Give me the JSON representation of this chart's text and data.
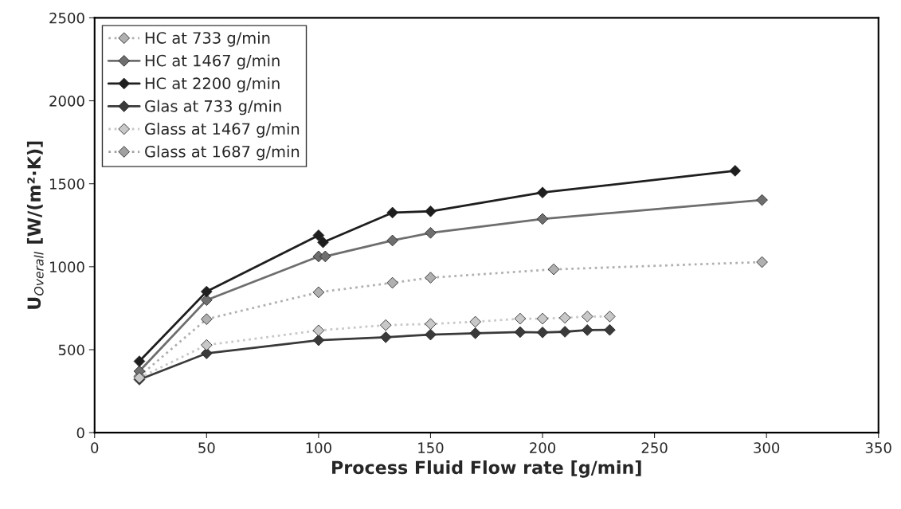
{
  "chart_data": {
    "type": "line",
    "xlabel": "Process Fluid Flow rate [g/min]",
    "ylabel": "U$_{Overall}$ [W/(m²·K)]",
    "xlim": [
      0,
      350
    ],
    "xticks": [
      0,
      50,
      100,
      150,
      200,
      250,
      300,
      350
    ],
    "ylim": [
      0,
      2500
    ],
    "yticks": [
      0,
      500,
      1000,
      1500,
      2000,
      2500
    ],
    "grid": false,
    "legend": "top left",
    "marker": "diamond",
    "line_style": "solid",
    "series": [
      {
        "name": "HC at 733 g/min",
        "color": "#b0b0b0",
        "line_style": "dotted",
        "x": [
          20,
          50,
          100,
          133,
          150,
          205,
          298
        ],
        "values": [
          340,
          684,
          846,
          903,
          934,
          984,
          1028
        ]
      },
      {
        "name": "HC at 1467 g/min",
        "color": "#6e6e6e",
        "x": [
          20,
          50,
          100,
          103,
          133,
          150,
          200,
          298
        ],
        "values": [
          370,
          799,
          1062,
          1062,
          1158,
          1204,
          1288,
          1402
        ]
      },
      {
        "name": "HC at 2200 g/min",
        "color": "#1e1e1e",
        "x": [
          20,
          50,
          100,
          102,
          133,
          150,
          200,
          286
        ],
        "values": [
          430,
          850,
          1189,
          1147,
          1326,
          1334,
          1447,
          1578
        ]
      },
      {
        "name": "Glas at 733 g/min",
        "color": "#3a3a3a",
        "x": [
          20,
          50,
          100,
          130,
          150,
          170,
          190,
          200,
          210,
          220,
          230
        ],
        "values": [
          320,
          478,
          557,
          575,
          591,
          599,
          606,
          604,
          608,
          618,
          619
        ]
      },
      {
        "name": "Glass at 1467 g/min",
        "color": "#c8c8c8",
        "line_style": "dotted",
        "x": [
          20,
          50,
          100,
          130,
          150,
          170,
          190,
          200,
          210,
          220,
          230
        ],
        "values": [
          330,
          528,
          616,
          648,
          655,
          668,
          687,
          687,
          692,
          700,
          700
        ]
      },
      {
        "name": "Glass at 1687 g/min",
        "color": "#a0a0a0",
        "line_style": "dotted"
      }
    ]
  }
}
